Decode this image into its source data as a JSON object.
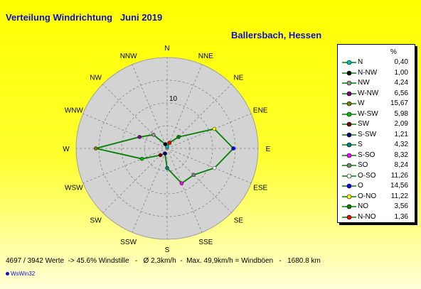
{
  "header": {
    "title": "Verteilung Windrichtung   Juni 2019",
    "location": "Ballersbach, Hessen"
  },
  "colors": {
    "background": "#ffff00",
    "title_text": "#1010c8",
    "rose_fill": "#d3d3d3",
    "series_line": "#008000",
    "grid": "#808080"
  },
  "chart_data": {
    "type": "radar",
    "directions": [
      "N",
      "NNE",
      "NE",
      "ENE",
      "E",
      "ESE",
      "SE",
      "SSE",
      "S",
      "SSW",
      "SW",
      "WSW",
      "W",
      "WNW",
      "NW",
      "NNW"
    ],
    "ring_label": "10",
    "rmax": 20,
    "ring_values": [
      5,
      10,
      15,
      20
    ],
    "legend_unit": "%",
    "legend": [
      {
        "name": "N",
        "value": "0,40",
        "color": "#00c0c0"
      },
      {
        "name": "N-NW",
        "value": "1,00",
        "color": "#000000"
      },
      {
        "name": "NW",
        "value": "4,24",
        "color": "#909090"
      },
      {
        "name": "W-NW",
        "value": "6,56",
        "color": "#800080"
      },
      {
        "name": "W",
        "value": "15,67",
        "color": "#808000"
      },
      {
        "name": "W-SW",
        "value": "5,98",
        "color": "#00c000"
      },
      {
        "name": "SW",
        "value": "2,09",
        "color": "#800000"
      },
      {
        "name": "S-SW",
        "value": "1,21",
        "color": "#000080"
      },
      {
        "name": "S",
        "value": "4,32",
        "color": "#008080"
      },
      {
        "name": "S-SO",
        "value": "8,32",
        "color": "#ff00ff"
      },
      {
        "name": "SO",
        "value": "8,24",
        "color": "#808080"
      },
      {
        "name": "O-SO",
        "value": "11,26",
        "color": "#ffffff"
      },
      {
        "name": "O",
        "value": "14,56",
        "color": "#0000ff"
      },
      {
        "name": "O-NO",
        "value": "11,22",
        "color": "#ffff00"
      },
      {
        "name": "NO",
        "value": "3,56",
        "color": "#008000"
      },
      {
        "name": "N-NO",
        "value": "1,36",
        "color": "#ff0000"
      }
    ],
    "series": [
      {
        "values": [
          0.4,
          1.36,
          3.56,
          11.22,
          14.56,
          11.26,
          8.24,
          8.32,
          4.32,
          1.21,
          2.09,
          5.98,
          15.67,
          6.56,
          4.24,
          1.0
        ]
      }
    ]
  },
  "footer": {
    "stats": "4697 / 3942 Werte  -> 45.6% Windstille   -   Ø 2,3km/h  -  Max. 49,9km/h = Windböen   -   1680.8 km"
  },
  "brand": "WsWin32"
}
